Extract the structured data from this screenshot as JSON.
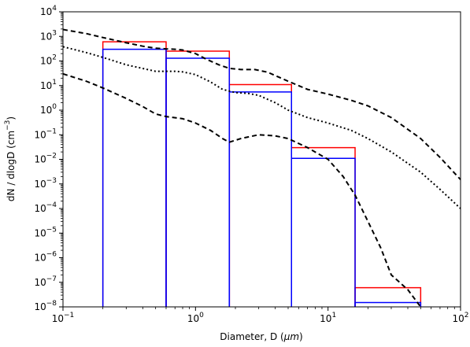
{
  "chart_data": {
    "type": "line",
    "xlabel_main": "Diameter, D (",
    "xlabel_unit": "μm",
    "xlabel_close": ")",
    "ylabel_main": "dN / dlogD (cm",
    "ylabel_exp": "−3",
    "ylabel_close": ")",
    "x_scale": "log",
    "y_scale": "log",
    "xlim": [
      0.1,
      100
    ],
    "ylim": [
      1e-08,
      10000
    ],
    "grid": false,
    "x_ticks": [
      {
        "base": "10",
        "exp": "−1"
      },
      {
        "base": "10",
        "exp": "0"
      },
      {
        "base": "10",
        "exp": "1"
      },
      {
        "base": "10",
        "exp": "2"
      }
    ],
    "y_ticks": [
      {
        "base": "10",
        "exp": "−8"
      },
      {
        "base": "10",
        "exp": "−7"
      },
      {
        "base": "10",
        "exp": "−6"
      },
      {
        "base": "10",
        "exp": "−5"
      },
      {
        "base": "10",
        "exp": "−4"
      },
      {
        "base": "10",
        "exp": "−3"
      },
      {
        "base": "10",
        "exp": "−2"
      },
      {
        "base": "10",
        "exp": "−1"
      },
      {
        "base": "10",
        "exp": "0"
      },
      {
        "base": "10",
        "exp": "1"
      },
      {
        "base": "10",
        "exp": "2"
      },
      {
        "base": "10",
        "exp": "3"
      },
      {
        "base": "10",
        "exp": "4"
      }
    ],
    "bins": {
      "edges": [
        0.2,
        0.6,
        1.8,
        5.3,
        16,
        50
      ],
      "red": {
        "color": "#ff0000",
        "values": [
          600,
          250,
          11,
          0.03,
          6e-08
        ]
      },
      "blue": {
        "color": "#0000ff",
        "values": [
          300,
          130,
          5.5,
          0.011,
          1.5e-08
        ]
      }
    },
    "series": [
      {
        "style": "dashed",
        "color": "#000000",
        "points": [
          [
            0.1,
            1900
          ],
          [
            0.15,
            1300
          ],
          [
            0.2,
            900
          ],
          [
            0.3,
            550
          ],
          [
            0.4,
            400
          ],
          [
            0.5,
            330
          ],
          [
            0.6,
            310
          ],
          [
            0.7,
            300
          ],
          [
            0.8,
            280
          ],
          [
            1.0,
            200
          ],
          [
            1.2,
            120
          ],
          [
            1.5,
            70
          ],
          [
            1.8,
            50
          ],
          [
            2.2,
            45
          ],
          [
            2.8,
            45
          ],
          [
            3.5,
            35
          ],
          [
            5,
            15
          ],
          [
            7,
            7
          ],
          [
            10,
            4.5
          ],
          [
            15,
            2.5
          ],
          [
            20,
            1.5
          ],
          [
            30,
            0.5
          ],
          [
            50,
            0.07
          ],
          [
            70,
            0.012
          ],
          [
            100,
            0.0015
          ]
        ]
      },
      {
        "style": "dotted",
        "color": "#000000",
        "points": [
          [
            0.1,
            380
          ],
          [
            0.15,
            220
          ],
          [
            0.2,
            140
          ],
          [
            0.3,
            70
          ],
          [
            0.5,
            38
          ],
          [
            0.7,
            38
          ],
          [
            0.8,
            36
          ],
          [
            1.0,
            28
          ],
          [
            1.3,
            14
          ],
          [
            1.6,
            7
          ],
          [
            2.0,
            5.2
          ],
          [
            2.5,
            4.8
          ],
          [
            3.0,
            4.0
          ],
          [
            4.0,
            2.0
          ],
          [
            5.0,
            1.0
          ],
          [
            7.0,
            0.5
          ],
          [
            10,
            0.3
          ],
          [
            15,
            0.15
          ],
          [
            20,
            0.07
          ],
          [
            30,
            0.02
          ],
          [
            50,
            0.003
          ],
          [
            70,
            0.0006
          ],
          [
            100,
            0.0001
          ]
        ]
      },
      {
        "style": "dashed",
        "color": "#000000",
        "points": [
          [
            0.1,
            30
          ],
          [
            0.15,
            15
          ],
          [
            0.2,
            8
          ],
          [
            0.3,
            3
          ],
          [
            0.4,
            1.4
          ],
          [
            0.5,
            0.7
          ],
          [
            0.6,
            0.55
          ],
          [
            0.8,
            0.45
          ],
          [
            1.0,
            0.3
          ],
          [
            1.3,
            0.15
          ],
          [
            1.6,
            0.07
          ],
          [
            1.8,
            0.05
          ],
          [
            2.2,
            0.07
          ],
          [
            3.0,
            0.1
          ],
          [
            4.0,
            0.09
          ],
          [
            5.0,
            0.07
          ],
          [
            7.0,
            0.03
          ],
          [
            10,
            0.01
          ],
          [
            13,
            0.002
          ],
          [
            16,
            0.00035
          ],
          [
            20,
            3e-05
          ],
          [
            25,
            2.5e-06
          ],
          [
            30,
            2e-07
          ],
          [
            40,
            5e-08
          ],
          [
            50,
            1e-08
          ]
        ]
      }
    ]
  }
}
